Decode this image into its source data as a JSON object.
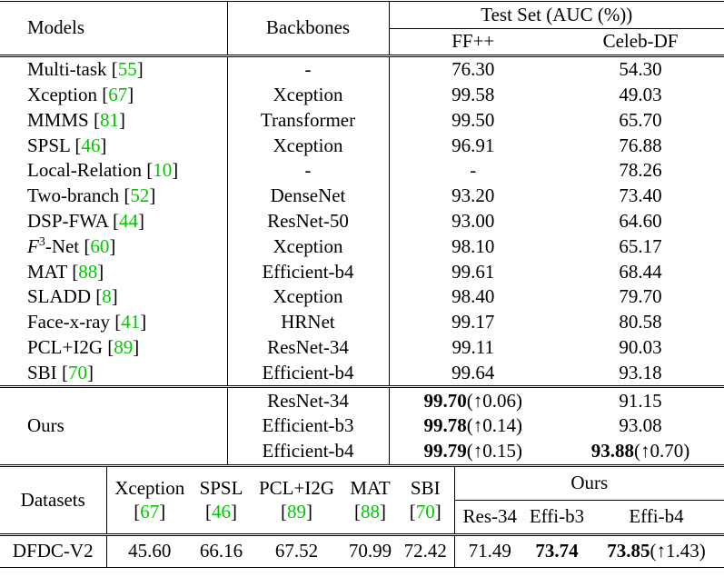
{
  "notation": {
    "open": "[",
    "close": "]"
  },
  "table1": {
    "headers": {
      "models": "Models",
      "backbones": "Backbones",
      "test_set": "Test Set (AUC (%))",
      "ff": "FF++",
      "celeb": "Celeb-DF"
    },
    "rows": [
      {
        "model": "Multi-task",
        "ref": "55",
        "backbone": "-",
        "ff": "76.30",
        "celeb": "54.30"
      },
      {
        "model": "Xception",
        "ref": "67",
        "backbone": "Xception",
        "ff": "99.58",
        "celeb": "49.03"
      },
      {
        "model": "MMMS",
        "ref": "81",
        "backbone": "Transformer",
        "ff": "99.50",
        "celeb": "65.70"
      },
      {
        "model": "SPSL",
        "ref": "46",
        "backbone": "Xception",
        "ff": "96.91",
        "celeb": "76.88"
      },
      {
        "model": "Local-Relation",
        "ref": "10",
        "backbone": "-",
        "ff": "-",
        "celeb": "78.26"
      },
      {
        "model": "Two-branch",
        "ref": "52",
        "backbone": "DenseNet",
        "ff": "93.20",
        "celeb": "73.40"
      },
      {
        "model": "DSP-FWA",
        "ref": "44",
        "backbone": "ResNet-50",
        "ff": "93.00",
        "celeb": "64.60"
      },
      {
        "model": "F",
        "model_sup": "3",
        "model_after": "-Net",
        "ref": "60",
        "backbone": "Xception",
        "ff": "98.10",
        "celeb": "65.17"
      },
      {
        "model": "MAT",
        "ref": "88",
        "backbone": "Efficient-b4",
        "ff": "99.61",
        "celeb": "68.44"
      },
      {
        "model": "SLADD",
        "ref": "8",
        "backbone": "Xception",
        "ff": "98.40",
        "celeb": "79.70"
      },
      {
        "model": "Face-x-ray",
        "ref": "41",
        "backbone": "HRNet",
        "ff": "99.17",
        "celeb": "80.58"
      },
      {
        "model": "PCL+I2G",
        "ref": "89",
        "backbone": "ResNet-34",
        "ff": "99.11",
        "celeb": "90.03"
      },
      {
        "model": "SBI",
        "ref": "70",
        "backbone": "Efficient-b4",
        "ff": "99.64",
        "celeb": "93.18"
      }
    ],
    "ours": {
      "label": "Ours",
      "rows": [
        {
          "backbone": "ResNet-34",
          "ff": "99.70",
          "ff_gain": "(↑0.06)",
          "celeb": "91.15"
        },
        {
          "backbone": "Efficient-b3",
          "ff": "99.78",
          "ff_gain": "(↑0.14)",
          "celeb": "93.08"
        },
        {
          "backbone": "Efficient-b4",
          "ff": "99.79",
          "ff_gain": "(↑0.15)",
          "celeb": "93.88",
          "celeb_gain": "(↑0.70)"
        }
      ]
    }
  },
  "table2": {
    "headers": {
      "datasets": "Datasets",
      "ours": "Ours"
    },
    "methods": [
      {
        "name": "Xception",
        "ref": "67"
      },
      {
        "name": "SPSL",
        "ref": "46"
      },
      {
        "name": "PCL+I2G",
        "ref": "89"
      },
      {
        "name": "MAT",
        "ref": "88"
      },
      {
        "name": "SBI",
        "ref": "70"
      }
    ],
    "ours_backbones": [
      "Res-34",
      "Effi-b3",
      "Effi-b4"
    ],
    "row": {
      "dataset": "DFDC-V2",
      "method_values": [
        "45.60",
        "66.16",
        "67.52",
        "70.99",
        "72.42"
      ],
      "ours_values": [
        "71.49",
        "73.74",
        "73.85"
      ],
      "ours_bold": [
        false,
        true,
        true
      ],
      "ours_gain": "(↑1.43)"
    }
  }
}
